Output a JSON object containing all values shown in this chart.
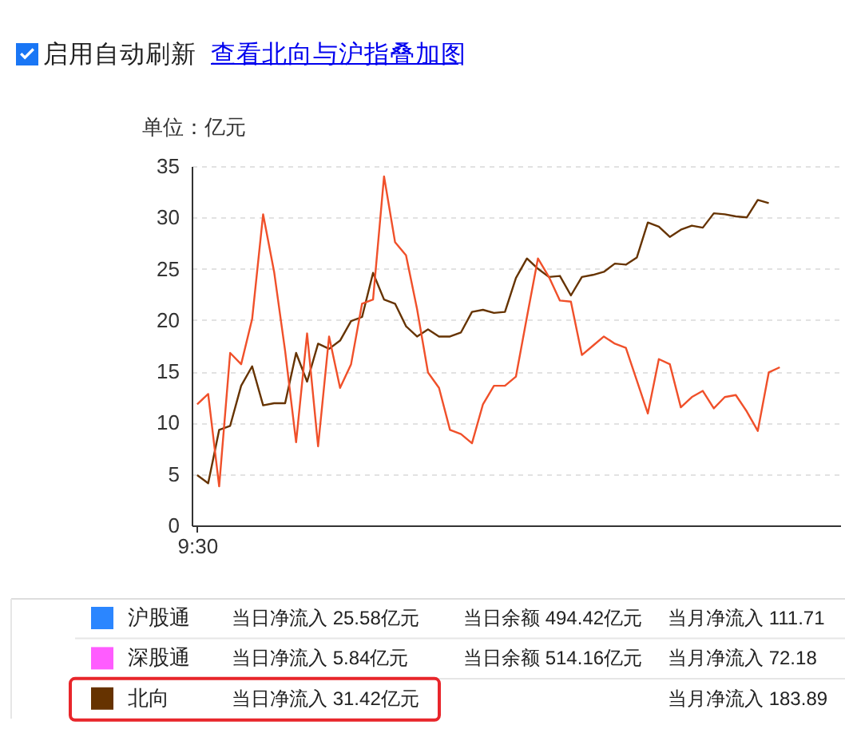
{
  "chart_data": {
    "type": "line",
    "ylabel": "单位：亿元",
    "categories": [
      "9:30",
      null,
      null,
      null,
      null,
      null,
      null,
      null,
      null,
      null,
      null,
      null,
      null,
      null,
      null,
      null,
      null,
      null,
      null,
      null,
      null,
      null,
      null,
      null,
      null,
      null,
      null,
      null,
      null,
      null,
      null,
      null,
      null,
      null,
      null,
      null,
      null,
      null,
      null,
      null,
      null,
      null,
      null,
      null,
      null,
      null,
      null,
      null,
      null,
      null,
      null,
      null,
      null,
      null,
      null,
      null,
      null,
      null,
      null
    ],
    "ylim": [
      0,
      35
    ],
    "yticks": [
      0,
      5,
      10,
      15,
      20,
      25,
      30,
      35
    ],
    "grid": "y",
    "legend": "bottom",
    "series": [
      {
        "name": "沪股通",
        "color": "#2b86ff",
        "values": [
          null,
          null,
          null,
          null,
          null,
          null,
          null,
          null,
          null,
          null,
          null,
          null,
          null,
          null,
          null,
          null,
          null,
          null,
          null,
          null,
          null,
          null,
          null,
          null,
          null,
          null,
          null,
          null,
          null,
          null,
          null,
          null,
          null,
          null,
          null,
          null,
          null,
          null,
          null,
          null,
          null,
          null,
          null,
          null,
          null,
          null,
          null,
          null,
          null,
          null,
          null,
          null,
          null,
          null,
          null,
          null,
          null,
          null,
          null
        ]
      },
      {
        "name": "深股通",
        "color": "#ff5cff",
        "values": [
          null,
          null,
          null,
          null,
          null,
          null,
          null,
          null,
          null,
          null,
          null,
          null,
          null,
          null,
          null,
          null,
          null,
          null,
          null,
          null,
          null,
          null,
          null,
          null,
          null,
          null,
          null,
          null,
          null,
          null,
          null,
          null,
          null,
          null,
          null,
          null,
          null,
          null,
          null,
          null,
          null,
          null,
          null,
          null,
          null,
          null,
          null,
          null,
          null,
          null,
          null,
          null,
          null,
          null,
          null,
          null,
          null,
          null,
          null
        ]
      },
      {
        "name": "北向",
        "color": "#663300",
        "values": [
          4.9,
          4.1,
          9.3,
          9.7,
          13.6,
          15.5,
          11.7,
          11.9,
          11.9,
          16.8,
          14.0,
          17.7,
          17.2,
          18.0,
          19.9,
          20.3,
          24.6,
          22.0,
          21.6,
          19.4,
          18.4,
          19.1,
          18.4,
          18.4,
          18.8,
          20.8,
          21.0,
          20.7,
          20.8,
          24.1,
          26.0,
          25.0,
          24.2,
          24.3,
          22.4,
          24.2,
          24.4,
          24.7,
          25.5,
          25.4,
          26.1,
          29.5,
          29.1,
          28.1,
          28.8,
          29.2,
          29.0,
          30.4,
          30.3,
          30.1,
          30.0,
          31.7,
          31.4,
          null,
          null,
          null,
          null,
          null,
          null
        ]
      },
      {
        "color": "#f0502a",
        "values": [
          11.8,
          12.8,
          3.8,
          16.8,
          15.7,
          20.1,
          30.3,
          24.7,
          17.0,
          8.1,
          18.7,
          7.7,
          18.4,
          13.4,
          15.7,
          21.6,
          22.0,
          34.0,
          27.6,
          26.3,
          21.1,
          14.9,
          13.4,
          9.3,
          8.9,
          8.0,
          11.8,
          13.6,
          13.6,
          14.5,
          20.3,
          26.0,
          24.2,
          21.9,
          21.8,
          16.6,
          17.5,
          18.4,
          17.7,
          17.3,
          14.1,
          10.9,
          16.2,
          15.7,
          11.5,
          12.5,
          13.1,
          11.4,
          12.5,
          12.7,
          11.1,
          9.2,
          14.9,
          15.4,
          null,
          null,
          null,
          null,
          null
        ]
      }
    ],
    "annotations": [
      "启用自动刷新",
      "查看北向与沪指叠加图",
      "当日净流入 25.58亿元",
      "当日余额 494.42亿元",
      "当月净流入 111.71",
      "当日净流入 5.84亿元",
      "当日余额 514.16亿元",
      "当月净流入 72.18",
      "当日净流入 31.42亿元",
      "当月净流入 183.89"
    ]
  }
}
